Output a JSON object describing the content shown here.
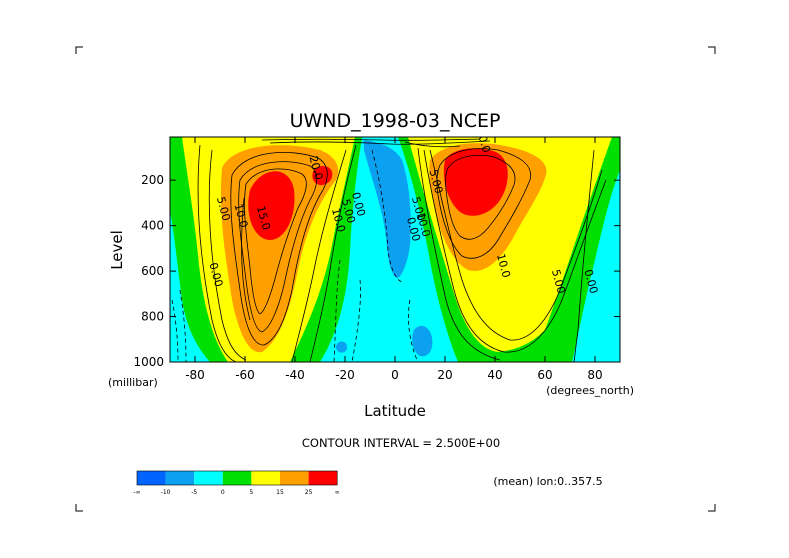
{
  "chart_data": {
    "type": "heatmap",
    "title": "UWND_1998-03_NCEP",
    "xlabel": "Latitude",
    "ylabel": "Level",
    "x_units": "(degrees_north)",
    "y_units": "(millibar)",
    "xlim": [
      -90,
      90
    ],
    "ylim": [
      1000,
      10
    ],
    "x_ticks": [
      -80,
      -60,
      -40,
      -20,
      0,
      20,
      40,
      60,
      80
    ],
    "y_ticks": [
      200,
      400,
      600,
      800,
      1000
    ],
    "contour_interval_text": "CONTOUR INTERVAL = 2.500E+00",
    "subset_text": "(mean) lon:0..357.5",
    "levels": [
      -10,
      -5,
      0,
      5,
      15,
      25
    ],
    "colorbar": {
      "labels": [
        "-∞",
        "-10",
        "-5",
        "0",
        "5",
        "15",
        "25",
        "∞"
      ],
      "colors": [
        "#0064ff",
        "#0ba0f0",
        "#00ffff",
        "#00e000",
        "#ffff00",
        "#ffa000",
        "#ff0000"
      ]
    },
    "contour_labels": [
      {
        "text": "10.0",
        "lat": 34,
        "p": 30
      },
      {
        "text": "20.0",
        "lat": -33,
        "p": 150
      },
      {
        "text": "5.00",
        "lat": -70,
        "p": 330
      },
      {
        "text": "10.0",
        "lat": -63,
        "p": 360
      },
      {
        "text": "15.0",
        "lat": -54,
        "p": 370
      },
      {
        "text": "10.0",
        "lat": -24,
        "p": 380
      },
      {
        "text": "5.00",
        "lat": -20,
        "p": 340
      },
      {
        "text": "0.00",
        "lat": -16,
        "p": 310
      },
      {
        "text": "0.00",
        "lat": -73,
        "p": 620
      },
      {
        "text": "5.00",
        "lat": 8,
        "p": 330
      },
      {
        "text": "10.0",
        "lat": 10,
        "p": 400
      },
      {
        "text": "0.00",
        "lat": 6,
        "p": 420
      },
      {
        "text": "5.00",
        "lat": 15,
        "p": 210
      },
      {
        "text": "10.0",
        "lat": 42,
        "p": 580
      },
      {
        "text": "5.00",
        "lat": 64,
        "p": 650
      },
      {
        "text": "0.00",
        "lat": 77,
        "p": 650
      }
    ]
  }
}
